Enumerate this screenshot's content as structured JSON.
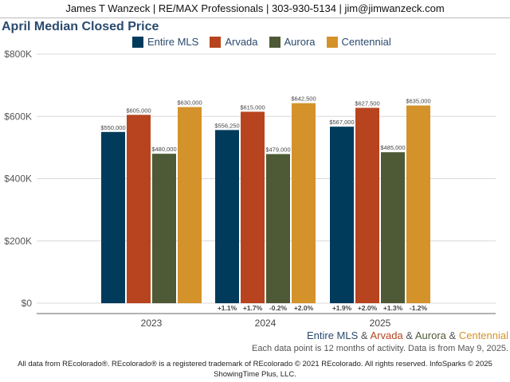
{
  "header": {
    "text": "James T Wanzeck | RE/MAX Professionals | 303-930-5134 | jim@jimwanzeck.com"
  },
  "colors": {
    "entire": "#003b5c",
    "arvada": "#b8441f",
    "aurora": "#4e5a36",
    "centennial": "#d4922a"
  },
  "chart_data": {
    "type": "bar",
    "title": "April Median Closed Price",
    "categories": [
      "2023",
      "2024",
      "2025"
    ],
    "series": [
      {
        "name": "Entire MLS",
        "color": "#003b5c",
        "values": [
          550000,
          556250,
          567000
        ],
        "labels": [
          "$550,000",
          "$556,250",
          "$567,000"
        ],
        "changes": [
          "",
          "+1.1%",
          "+1.9%"
        ]
      },
      {
        "name": "Arvada",
        "color": "#b8441f",
        "values": [
          605000,
          615000,
          627500
        ],
        "labels": [
          "$605,000",
          "$615,000",
          "$627,500"
        ],
        "changes": [
          "",
          "+1.7%",
          "+2.0%"
        ]
      },
      {
        "name": "Aurora",
        "color": "#4e5a36",
        "values": [
          480000,
          479000,
          485000
        ],
        "labels": [
          "$480,000",
          "$479,000",
          "$485,000"
        ],
        "changes": [
          "",
          "-0.2%",
          "+1.3%"
        ]
      },
      {
        "name": "Centennial",
        "color": "#d4922a",
        "values": [
          630000,
          642500,
          635000
        ],
        "labels": [
          "$630,000",
          "$642,500",
          "$635,000"
        ],
        "changes": [
          "",
          "+2.0%",
          "-1.2%"
        ]
      }
    ],
    "ylim": [
      0,
      800000
    ],
    "yticks": [
      0,
      200000,
      400000,
      600000,
      800000
    ],
    "ytick_labels": [
      "$0",
      "$200K",
      "$400K",
      "$600K",
      "$800K"
    ],
    "grid": true,
    "legend": "top-center"
  },
  "footnote": {
    "series_names": [
      "Entire MLS",
      "Arvada",
      "Aurora",
      "Centennial"
    ],
    "separator": "&",
    "note": "Each data point is 12 months of activity. Data is from May 9, 2025.",
    "footer_line1": "All data from REcolorado®. REcolorado® is a registered trademark of REcolorado © 2021 REcolorado. All rights reserved. InfoSparks © 2025",
    "footer_line2": "ShowingTime Plus, LLC."
  }
}
